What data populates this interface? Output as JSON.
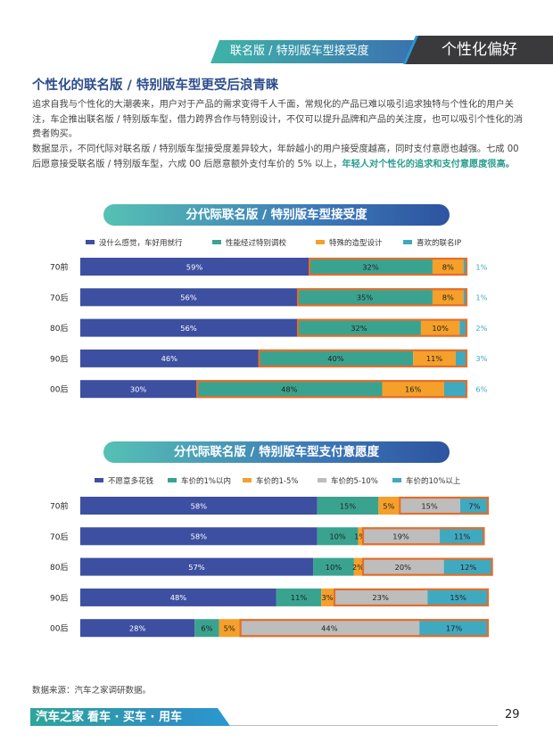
{
  "header": {
    "tab_primary": "联名版 / 特别版车型接受度",
    "tab_secondary": "个性化偏好"
  },
  "section_title": "个性化的联名版 / 特别版车型更受后浪青睐",
  "paragraph1": "追求自我与个性化的大潮袭来，用户对于产品的需求变得千人千面，常规化的产品已难以吸引追求独特与个性化的用户关注，车企推出联名版 / 特别版车型，借力跨界合作与特别设计，不仅可以提升品牌和产品的关注度，也可以吸引个性化的消费者购买。",
  "paragraph2_plain": "数据显示，不同代际对联名版 / 特别版车型接受度差异较大，年龄越小的用户接受度越高，同时支付意愿也越强。七成 00 后愿意接受联名版 / 特别版车型，六成 00 后愿意额外支付车价的 5% 以上，",
  "paragraph2_highlight": "年轻人对个性化的追求和支付意愿度很高。",
  "source_note": "数据来源：汽车之家调研数据。",
  "footer": {
    "brand": "汽车之家",
    "slogan": "看车 · 买车 · 用车",
    "page_number": "29"
  },
  "colors": {
    "blue": "#3d4fa0",
    "green": "#3aa390",
    "orange": "#f5a02a",
    "gray": "#bdbdbd",
    "teal": "#3fa9c0",
    "highlight_border": "#e36e2a"
  },
  "chart_data": [
    {
      "type": "bar",
      "orientation": "horizontal-stacked",
      "title": "分代际联名版 / 特别版车型接受度",
      "categories": [
        "70前",
        "70后",
        "80后",
        "90后",
        "00后"
      ],
      "series": [
        {
          "name": "没什么感觉，车好用就行",
          "color": "#3d4fa0",
          "values": [
            59,
            56,
            56,
            46,
            30
          ],
          "labels": [
            "59%",
            "56%",
            "56%",
            "46%",
            "30%"
          ]
        },
        {
          "name": "性能经过特别调校",
          "color": "#3aa390",
          "values": [
            32,
            35,
            32,
            40,
            48
          ],
          "labels": [
            "32%",
            "35%",
            "32%",
            "40%",
            "48%"
          ]
        },
        {
          "name": "特殊的造型设计",
          "color": "#f5a02a",
          "values": [
            8,
            8,
            10,
            11,
            16
          ],
          "labels": [
            "8%",
            "8%",
            "10%",
            "11%",
            "16%"
          ]
        },
        {
          "name": "喜欢的联名IP",
          "color": "#3fa9c0",
          "values": [
            1,
            1,
            2,
            3,
            6
          ],
          "labels": [
            "1%",
            "1%",
            "2%",
            "3%",
            "6%"
          ],
          "label_outside": true
        }
      ],
      "highlight_from_series": 1
    },
    {
      "type": "bar",
      "orientation": "horizontal-stacked",
      "title": "分代际联名版 / 特别版车型支付意愿度",
      "categories": [
        "70前",
        "70后",
        "80后",
        "90后",
        "00后"
      ],
      "series": [
        {
          "name": "不愿意多花钱",
          "color": "#3d4fa0",
          "values": [
            58,
            58,
            57,
            48,
            28
          ],
          "labels": [
            "58%",
            "58%",
            "57%",
            "48%",
            "28%"
          ]
        },
        {
          "name": "车价的1%以内",
          "color": "#3aa390",
          "values": [
            15,
            10,
            10,
            11,
            6
          ],
          "labels": [
            "15%",
            "10%",
            "10%",
            "11%",
            "6%"
          ]
        },
        {
          "name": "车价的1-5%",
          "color": "#f5a02a",
          "values": [
            5,
            1,
            2,
            3,
            5
          ],
          "labels": [
            "5%",
            "1%",
            "2%",
            "3%",
            "5%"
          ]
        },
        {
          "name": "车价的5-10%",
          "color": "#bdbdbd",
          "values": [
            15,
            19,
            20,
            23,
            44
          ],
          "labels": [
            "15%",
            "19%",
            "20%",
            "23%",
            "44%"
          ]
        },
        {
          "name": "车价的10%以上",
          "color": "#3fa9c0",
          "values": [
            7,
            11,
            12,
            15,
            17
          ],
          "labels": [
            "7%",
            "11%",
            "12%",
            "15%",
            "17%"
          ]
        }
      ],
      "highlight_from_series": 3
    }
  ]
}
